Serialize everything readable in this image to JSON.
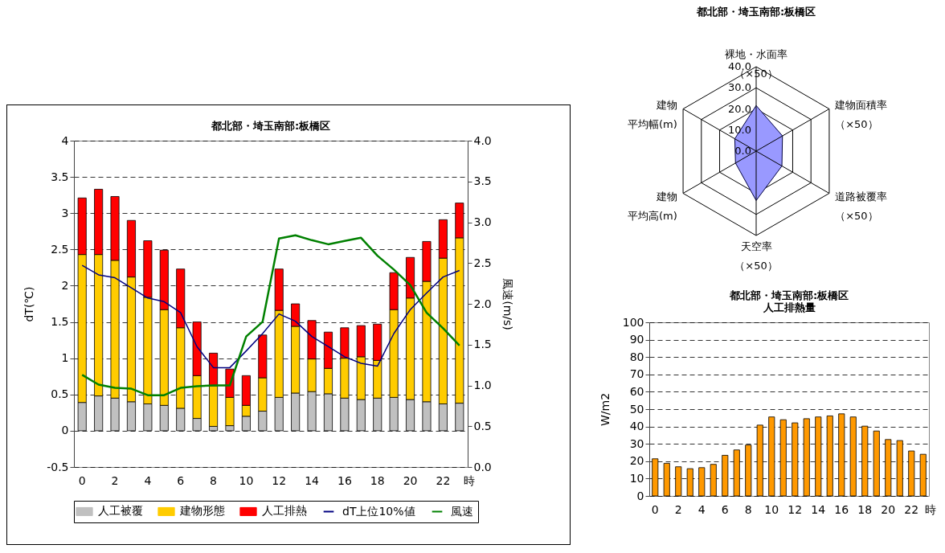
{
  "chart_data": [
    {
      "type": "bar",
      "title": "都北部・埼玉南部:板橋区",
      "stacked": true,
      "xlabel": "時",
      "ylabel": "dT(℃)",
      "y2label": "風速(m/s)",
      "categories": [
        "0",
        null,
        "2",
        null,
        "4",
        null,
        "6",
        null,
        "8",
        null,
        "10",
        null,
        "12",
        null,
        "14",
        null,
        "16",
        null,
        "18",
        null,
        "20",
        null,
        "22",
        null
      ],
      "series": [
        {
          "name": "人工被覆",
          "color": "#c0c0c0",
          "values": [
            0.39,
            0.48,
            0.45,
            0.4,
            0.37,
            0.35,
            0.31,
            0.17,
            0.06,
            0.07,
            0.2,
            0.27,
            0.46,
            0.52,
            0.54,
            0.51,
            0.45,
            0.43,
            0.45,
            0.46,
            0.43,
            0.4,
            0.37,
            0.38
          ]
        },
        {
          "name": "建物形態",
          "color": "#ffcc00",
          "values": [
            2.04,
            1.95,
            1.9,
            1.72,
            1.47,
            1.32,
            1.11,
            0.59,
            0.56,
            0.39,
            0.15,
            0.46,
            1.2,
            0.92,
            0.45,
            0.35,
            0.55,
            0.59,
            0.52,
            1.21,
            1.4,
            1.66,
            2.01,
            2.28
          ]
        },
        {
          "name": "人工排熱",
          "color": "#ff0000",
          "values": [
            0.78,
            0.9,
            0.88,
            0.78,
            0.78,
            0.82,
            0.81,
            0.74,
            0.45,
            0.39,
            0.41,
            0.59,
            0.57,
            0.31,
            0.53,
            0.5,
            0.42,
            0.43,
            0.5,
            0.51,
            0.56,
            0.55,
            0.53,
            0.48
          ]
        },
        {
          "name": "dT上位10%値",
          "type": "line",
          "color": "#000080",
          "values": [
            2.28,
            2.15,
            2.11,
            1.97,
            1.83,
            1.78,
            1.63,
            1.16,
            0.87,
            0.87,
            1.1,
            1.34,
            1.61,
            1.51,
            1.3,
            1.16,
            1.02,
            0.93,
            0.89,
            1.34,
            1.67,
            1.9,
            2.12,
            2.21
          ]
        },
        {
          "name": "風速",
          "type": "line",
          "axis": "y2",
          "color": "#008000",
          "values": [
            1.13,
            1.01,
            0.97,
            0.96,
            0.88,
            0.88,
            0.97,
            0.99,
            1.0,
            1.0,
            1.6,
            1.78,
            2.8,
            2.84,
            2.78,
            2.73,
            2.77,
            2.81,
            2.59,
            2.42,
            2.23,
            1.89,
            1.7,
            1.49
          ]
        }
      ],
      "ylim": [
        -0.5,
        4
      ],
      "yticks": [
        -0.5,
        0,
        0.5,
        1,
        1.5,
        2,
        2.5,
        3,
        3.5,
        4
      ],
      "y2lim": [
        0,
        4
      ],
      "y2ticks": [
        {
          "value": 0,
          "label": "0.0"
        },
        {
          "value": 0.5,
          "label": "0.5"
        },
        {
          "value": 1,
          "label": "1.0"
        },
        {
          "value": 1.5,
          "label": "1.5"
        },
        {
          "value": 2,
          "label": "2.0"
        },
        {
          "value": 2.5,
          "label": "2.5"
        },
        {
          "value": 3,
          "label": "3.0"
        },
        {
          "value": 3.5,
          "label": "3.5"
        },
        {
          "value": 4,
          "label": "4.0"
        }
      ],
      "grid": "y",
      "legend": "bottom"
    },
    {
      "type": "radar",
      "title": "都北部・埼玉南部:板橋区",
      "categories": [
        "裸地・水面率（×50）",
        "建物面積率（×50）",
        "道路被覆率（×50）",
        "天空率（×50）",
        "建物平均高(m)",
        "建物平均幅(m)"
      ],
      "series": [
        {
          "color": "#9999ff",
          "values": [
            21.6,
            14.4,
            14.1,
            23.4,
            11.3,
            11.7
          ]
        }
      ],
      "ylim": [
        0,
        40
      ],
      "yticks": [
        {
          "value": 0,
          "label": "0.0"
        },
        {
          "value": 10,
          "label": "10.0"
        },
        {
          "value": 20,
          "label": "20.0"
        },
        {
          "value": 30,
          "label": "30.0"
        },
        {
          "value": 40,
          "label": "40.0"
        }
      ],
      "grid": true
    },
    {
      "type": "bar",
      "title": "都北部・埼玉南部:板橋区",
      "subtitle": "人工排熱量",
      "xlabel": "時",
      "ylabel": "W/m2",
      "categories": [
        "0",
        null,
        "2",
        null,
        "4",
        null,
        "6",
        null,
        "8",
        null,
        "10",
        null,
        "12",
        null,
        "14",
        null,
        "16",
        null,
        "18",
        null,
        "20",
        null,
        "22",
        null
      ],
      "series": [
        {
          "color": "#ff9900",
          "values": [
            21.4,
            18.8,
            16.8,
            15.7,
            16.3,
            18.2,
            23.4,
            26.5,
            29.3,
            40.8,
            45.5,
            43.9,
            42.1,
            44.5,
            45.5,
            46.1,
            47.3,
            45.5,
            40.2,
            37.4,
            32.5,
            31.9,
            25.9,
            24.0
          ]
        }
      ],
      "ylim": [
        0,
        100
      ],
      "yticks": [
        0,
        10,
        20,
        30,
        40,
        50,
        60,
        70,
        80,
        90,
        100
      ],
      "grid": "y"
    }
  ]
}
